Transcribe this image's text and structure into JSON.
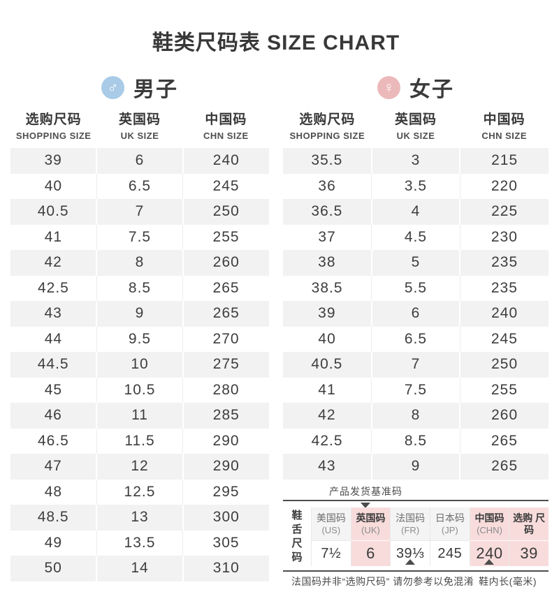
{
  "title": "鞋类尺码表 SIZE CHART",
  "columns": [
    {
      "cn": "选购尺码",
      "en": "SHOPPING SIZE"
    },
    {
      "cn": "英国码",
      "en": "UK SIZE"
    },
    {
      "cn": "中国码",
      "en": "CHN SIZE"
    }
  ],
  "men": {
    "label": "男子",
    "icon_glyph": "♂",
    "rows": [
      [
        "39",
        "6",
        "240"
      ],
      [
        "40",
        "6.5",
        "245"
      ],
      [
        "40.5",
        "7",
        "250"
      ],
      [
        "41",
        "7.5",
        "255"
      ],
      [
        "42",
        "8",
        "260"
      ],
      [
        "42.5",
        "8.5",
        "265"
      ],
      [
        "43",
        "9",
        "265"
      ],
      [
        "44",
        "9.5",
        "270"
      ],
      [
        "44.5",
        "10",
        "275"
      ],
      [
        "45",
        "10.5",
        "280"
      ],
      [
        "46",
        "11",
        "285"
      ],
      [
        "46.5",
        "11.5",
        "290"
      ],
      [
        "47",
        "12",
        "290"
      ],
      [
        "48",
        "12.5",
        "295"
      ],
      [
        "48.5",
        "13",
        "300"
      ],
      [
        "49",
        "13.5",
        "305"
      ],
      [
        "50",
        "14",
        "310"
      ]
    ]
  },
  "women": {
    "label": "女子",
    "icon_glyph": "♀",
    "rows": [
      [
        "35.5",
        "3",
        "215"
      ],
      [
        "36",
        "3.5",
        "220"
      ],
      [
        "36.5",
        "4",
        "225"
      ],
      [
        "37",
        "4.5",
        "230"
      ],
      [
        "38",
        "5",
        "235"
      ],
      [
        "38.5",
        "5.5",
        "235"
      ],
      [
        "39",
        "6",
        "240"
      ],
      [
        "40",
        "6.5",
        "245"
      ],
      [
        "40.5",
        "7",
        "250"
      ],
      [
        "41",
        "7.5",
        "255"
      ],
      [
        "42",
        "8",
        "260"
      ],
      [
        "42.5",
        "8.5",
        "265"
      ],
      [
        "43",
        "9",
        "265"
      ]
    ]
  },
  "tongue": {
    "callout_top": "产品发货基准码",
    "row_header": "鞋舌尺码",
    "cols": [
      {
        "name": "美国码",
        "sub": "(US)",
        "value": "7½",
        "highlight": false
      },
      {
        "name": "英国码",
        "sub": "(UK)",
        "value": "6",
        "highlight": true
      },
      {
        "name": "法国码",
        "sub": "(FR)",
        "value": "39⅓",
        "highlight": false
      },
      {
        "name": "日本码",
        "sub": "(JP)",
        "value": "245",
        "highlight": false
      },
      {
        "name": "中国码",
        "sub": "(CHN)",
        "value": "240",
        "highlight": true
      },
      {
        "name": "选购 尺码",
        "sub": "",
        "value": "39",
        "highlight": true
      }
    ],
    "footnote_left": "法国码并非“选购尺码” 请勿参考以免混淆",
    "footnote_right": "鞋内长(毫米)"
  },
  "colors": {
    "male_icon_bg": "#a9cbe7",
    "female_icon_bg": "#ecb9ba",
    "highlight_pink": "#f8dcdc",
    "row_stripe_gray": "#f2f2f2",
    "rule_dark": "#4c4c4c",
    "text_dark": "#3a3a3a"
  }
}
